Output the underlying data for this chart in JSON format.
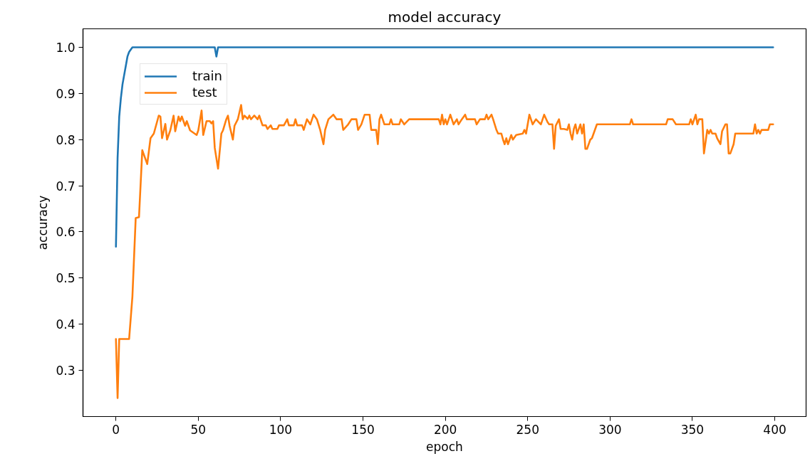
{
  "chart_data": {
    "type": "line",
    "title": "model accuracy",
    "xlabel": "epoch",
    "ylabel": "accuracy",
    "xlim": [
      -20,
      419
    ],
    "ylim": [
      0.2,
      1.04
    ],
    "xticks": [
      0,
      50,
      100,
      150,
      200,
      250,
      300,
      350,
      400
    ],
    "yticks": [
      0.3,
      0.4,
      0.5,
      0.6,
      0.7,
      0.8,
      0.9,
      {
        "value": 1.0,
        "label": "1.0"
      }
    ],
    "grid": false,
    "legend": "top left",
    "line_style": "solid",
    "series": [
      {
        "name": "train",
        "color": "#1f77b4",
        "x": [
          0,
          1,
          2,
          3,
          4,
          5,
          6,
          7,
          8,
          10,
          60,
          61,
          62,
          399
        ],
        "values": [
          0.568,
          0.76,
          0.85,
          0.89,
          0.92,
          0.94,
          0.96,
          0.98,
          0.99,
          1.0,
          1.0,
          0.98,
          1.0,
          1.0
        ]
      },
      {
        "name": "test",
        "color": "#ff7f0e",
        "x": [
          0,
          1,
          2,
          8,
          10,
          12,
          14,
          16,
          19,
          21,
          23,
          26,
          27,
          28,
          30,
          31,
          33,
          35,
          36,
          38,
          39,
          40,
          42,
          43,
          45,
          49,
          50,
          52,
          53,
          55,
          57,
          58,
          59,
          60,
          62,
          64,
          65,
          67,
          68,
          69,
          71,
          72,
          74,
          76,
          77,
          78,
          80,
          81,
          82,
          84,
          86,
          87,
          89,
          91,
          92,
          94,
          95,
          98,
          99,
          102,
          104,
          105,
          108,
          109,
          110,
          113,
          114,
          116,
          118,
          120,
          122,
          124,
          126,
          127,
          129,
          132,
          134,
          137,
          138,
          141,
          143,
          146,
          147,
          149,
          151,
          154,
          155,
          158,
          159,
          160,
          161,
          163,
          166,
          167,
          168,
          172,
          173,
          175,
          178,
          196,
          197,
          198,
          199,
          200,
          201,
          203,
          205,
          207,
          208,
          210,
          212,
          213,
          218,
          219,
          221,
          224,
          225,
          226,
          228,
          229,
          231,
          232,
          234,
          235,
          236,
          237,
          238,
          240,
          241,
          243,
          247,
          248,
          249,
          251,
          253,
          255,
          258,
          260,
          262,
          263,
          265,
          266,
          267,
          269,
          270,
          272,
          274,
          275,
          276,
          277,
          278,
          279,
          280,
          282,
          283,
          284,
          285,
          286,
          288,
          289,
          292,
          312,
          313,
          314,
          334,
          335,
          338,
          340,
          348,
          349,
          350,
          352,
          353,
          354,
          356,
          357,
          359,
          360,
          361,
          362,
          364,
          365,
          367,
          368,
          370,
          371,
          372,
          373,
          375,
          376,
          387,
          388,
          389,
          390,
          391,
          392,
          396,
          397,
          399
        ],
        "values": [
          0.368,
          0.24,
          0.368,
          0.368,
          0.46,
          0.63,
          0.632,
          0.777,
          0.747,
          0.803,
          0.813,
          0.852,
          0.85,
          0.803,
          0.834,
          0.8,
          0.82,
          0.852,
          0.818,
          0.85,
          0.84,
          0.85,
          0.83,
          0.84,
          0.82,
          0.81,
          0.82,
          0.863,
          0.81,
          0.84,
          0.84,
          0.835,
          0.84,
          0.782,
          0.737,
          0.813,
          0.82,
          0.844,
          0.852,
          0.83,
          0.8,
          0.83,
          0.844,
          0.875,
          0.844,
          0.852,
          0.845,
          0.852,
          0.844,
          0.852,
          0.844,
          0.852,
          0.831,
          0.831,
          0.823,
          0.831,
          0.823,
          0.823,
          0.831,
          0.831,
          0.844,
          0.831,
          0.831,
          0.844,
          0.831,
          0.831,
          0.821,
          0.844,
          0.833,
          0.854,
          0.844,
          0.821,
          0.79,
          0.821,
          0.844,
          0.854,
          0.844,
          0.844,
          0.821,
          0.833,
          0.844,
          0.844,
          0.821,
          0.833,
          0.854,
          0.854,
          0.821,
          0.821,
          0.79,
          0.844,
          0.854,
          0.833,
          0.833,
          0.844,
          0.833,
          0.833,
          0.844,
          0.833,
          0.844,
          0.844,
          0.833,
          0.854,
          0.833,
          0.844,
          0.833,
          0.854,
          0.833,
          0.844,
          0.833,
          0.844,
          0.854,
          0.844,
          0.844,
          0.833,
          0.844,
          0.844,
          0.854,
          0.844,
          0.854,
          0.844,
          0.821,
          0.813,
          0.813,
          0.8,
          0.79,
          0.803,
          0.79,
          0.81,
          0.8,
          0.81,
          0.813,
          0.821,
          0.813,
          0.854,
          0.833,
          0.844,
          0.833,
          0.854,
          0.838,
          0.833,
          0.833,
          0.78,
          0.83,
          0.844,
          0.823,
          0.823,
          0.821,
          0.833,
          0.813,
          0.8,
          0.823,
          0.833,
          0.813,
          0.833,
          0.813,
          0.833,
          0.78,
          0.78,
          0.8,
          0.803,
          0.833,
          0.833,
          0.844,
          0.833,
          0.833,
          0.844,
          0.844,
          0.833,
          0.833,
          0.844,
          0.833,
          0.854,
          0.833,
          0.844,
          0.844,
          0.77,
          0.821,
          0.813,
          0.821,
          0.813,
          0.813,
          0.803,
          0.79,
          0.818,
          0.833,
          0.833,
          0.77,
          0.77,
          0.79,
          0.813,
          0.813,
          0.833,
          0.813,
          0.821,
          0.813,
          0.821,
          0.821,
          0.833,
          0.833
        ]
      }
    ]
  }
}
